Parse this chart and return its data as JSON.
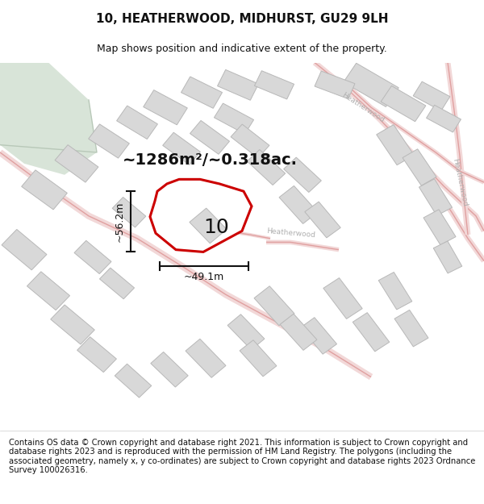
{
  "title": "10, HEATHERWOOD, MIDHURST, GU29 9LH",
  "subtitle": "Map shows position and indicative extent of the property.",
  "area_text": "~1286m²/~0.318ac.",
  "width_label": "~49.1m",
  "height_label": "~56.2m",
  "plot_number": "10",
  "footer": "Contains OS data © Crown copyright and database right 2021. This information is subject to Crown copyright and database rights 2023 and is reproduced with the permission of HM Land Registry. The polygons (including the associated geometry, namely x, y co-ordinates) are subject to Crown copyright and database rights 2023 Ordnance Survey 100026316.",
  "map_bg": "#f5f5f2",
  "road_fill_color": "#f2d8d8",
  "road_line_color": "#e0a0a0",
  "building_fill": "#d8d8d8",
  "building_edge": "#b8b8b8",
  "green_fill": "#d8e4d8",
  "plot_outline_color": "#cc0000",
  "plot_fill_color": "#ffffff",
  "dim_line_color": "#111111",
  "text_color": "#111111",
  "road_label_color": "#b0b0b0",
  "title_fontsize": 11,
  "subtitle_fontsize": 9,
  "footer_fontsize": 7.2,
  "plot_label_fontsize": 18,
  "area_fontsize": 14,
  "dim_fontsize": 9,
  "road_linewidth": 1.0,
  "road_fill_linewidth": 6
}
